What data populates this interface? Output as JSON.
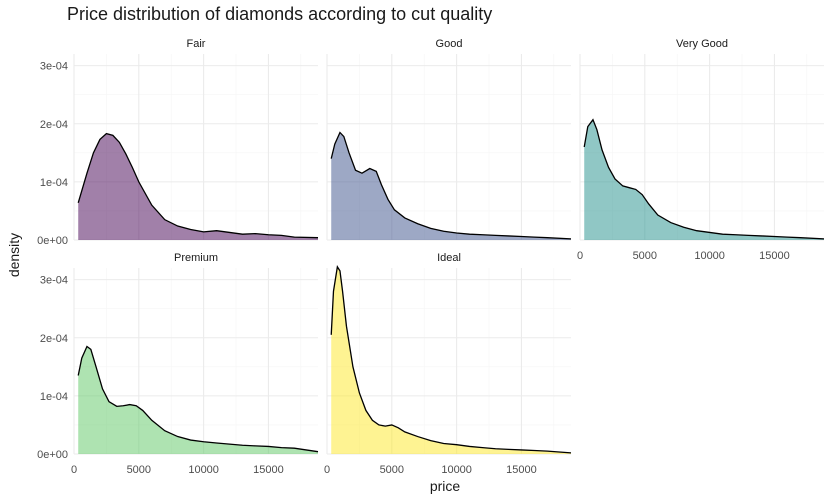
{
  "chart_data": {
    "type": "area",
    "title": "Price distribution of diamonds according to cut quality",
    "xlabel": "price",
    "ylabel": "density",
    "xlim": [
      0,
      18823
    ],
    "ylim": [
      0,
      0.00032
    ],
    "x_ticks": [
      0,
      5000,
      10000,
      15000
    ],
    "x_tick_labels": [
      "0",
      "5000",
      "10000",
      "15000"
    ],
    "y_ticks": [
      0,
      0.0001,
      0.0002,
      0.0003
    ],
    "y_tick_labels": [
      "0e+00",
      "1e-04",
      "2e-04",
      "3e-04"
    ],
    "grid": true,
    "legend": "none",
    "facets": [
      {
        "name": "Fair",
        "color": "#440154",
        "x": [
          326,
          1000,
          1500,
          2000,
          2500,
          3000,
          3500,
          4000,
          4500,
          5000,
          6000,
          7000,
          8000,
          9000,
          10000,
          11000,
          12000,
          13000,
          14000,
          15000,
          16000,
          17000,
          18823
        ],
        "y": [
          6.4e-05,
          0.000115,
          0.00015,
          0.000173,
          0.000183,
          0.00018,
          0.000168,
          0.000148,
          0.000125,
          0.0001,
          6e-05,
          3.5e-05,
          2.4e-05,
          1.8e-05,
          1.4e-05,
          1.6e-05,
          1.3e-05,
          1e-05,
          1.1e-05,
          9e-06,
          8e-06,
          5e-06,
          4e-06
        ]
      },
      {
        "name": "Good",
        "color": "#3b528b",
        "x": [
          326,
          600,
          1000,
          1300,
          1700,
          2200,
          2700,
          3300,
          3800,
          4200,
          4700,
          5200,
          6000,
          7000,
          8000,
          9000,
          10000,
          11000,
          12000,
          13000,
          14000,
          15000,
          16000,
          17000,
          18823
        ],
        "y": [
          0.00014,
          0.000165,
          0.000185,
          0.000178,
          0.00015,
          0.00012,
          0.000115,
          0.000123,
          0.000118,
          9.5e-05,
          7e-05,
          5.2e-05,
          3.8e-05,
          2.8e-05,
          2e-05,
          1.5e-05,
          1.2e-05,
          1e-05,
          9e-06,
          8e-06,
          7e-06,
          6e-06,
          5e-06,
          4e-06,
          2e-06
        ]
      },
      {
        "name": "Very Good",
        "color": "#21908c",
        "x": [
          326,
          600,
          1000,
          1300,
          1700,
          2200,
          2700,
          3300,
          3800,
          4300,
          4800,
          5300,
          6000,
          7000,
          8000,
          9000,
          10000,
          11000,
          12000,
          13000,
          14000,
          15000,
          16000,
          17000,
          18823
        ],
        "y": [
          0.00016,
          0.000195,
          0.000207,
          0.00019,
          0.000155,
          0.000125,
          0.000105,
          9.3e-05,
          9e-05,
          8.7e-05,
          7.8e-05,
          6.2e-05,
          4.3e-05,
          3e-05,
          2.2e-05,
          1.6e-05,
          1.3e-05,
          1e-05,
          9e-06,
          8e-06,
          7e-06,
          6e-06,
          5e-06,
          4e-06,
          2e-06
        ]
      },
      {
        "name": "Premium",
        "color": "#5dc863",
        "x": [
          326,
          600,
          1000,
          1300,
          1700,
          2200,
          2700,
          3300,
          3800,
          4300,
          4800,
          5300,
          6000,
          7000,
          8000,
          9000,
          10000,
          11000,
          12000,
          13000,
          14000,
          15000,
          16000,
          17000,
          18823
        ],
        "y": [
          0.000135,
          0.000165,
          0.000185,
          0.00018,
          0.00015,
          0.000112,
          9e-05,
          8.2e-05,
          8.3e-05,
          8.5e-05,
          8.3e-05,
          7.5e-05,
          5.8e-05,
          4e-05,
          3e-05,
          2.4e-05,
          2.1e-05,
          1.9e-05,
          1.7e-05,
          1.5e-05,
          1.4e-05,
          1.3e-05,
          1.1e-05,
          1e-05,
          4e-06
        ]
      },
      {
        "name": "Ideal",
        "color": "#fde725",
        "x": [
          326,
          500,
          800,
          1000,
          1200,
          1500,
          2000,
          2500,
          3000,
          3500,
          4000,
          4500,
          5000,
          5500,
          6000,
          7000,
          8000,
          9000,
          10000,
          11000,
          12000,
          13000,
          14000,
          15000,
          16000,
          17000,
          18823
        ],
        "y": [
          0.000205,
          0.00028,
          0.000322,
          0.000315,
          0.00028,
          0.00022,
          0.00015,
          0.000105,
          7.5e-05,
          5.8e-05,
          5e-05,
          4.8e-05,
          5e-05,
          4.5e-05,
          3.8e-05,
          3e-05,
          2.3e-05,
          1.8e-05,
          1.6e-05,
          1.3e-05,
          1.1e-05,
          9e-06,
          8e-06,
          7e-06,
          6e-06,
          5e-06,
          2e-06
        ]
      }
    ]
  }
}
